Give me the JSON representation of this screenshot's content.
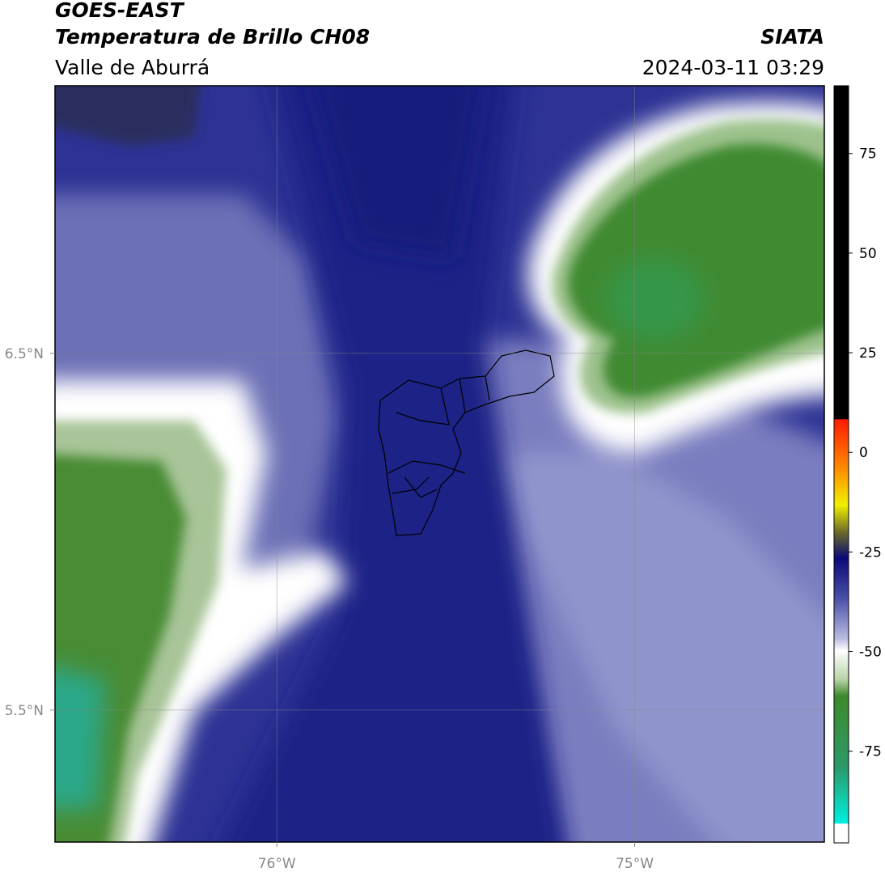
{
  "header": {
    "title": "GOES-EAST",
    "subtitle": "Temperatura de Brillo CH08",
    "region": "Valle de Aburrá",
    "source": "SIATA",
    "timestamp": "2024-03-11 03:29"
  },
  "map": {
    "xlim": [
      -76.62,
      -74.47
    ],
    "ylim": [
      5.13,
      7.25
    ],
    "xticks": [
      {
        "value": -76,
        "label": "76°W"
      },
      {
        "value": -75,
        "label": "75°W"
      }
    ],
    "yticks": [
      {
        "value": 6.5,
        "label": "6.5°N"
      },
      {
        "value": 5.5,
        "label": "5.5°N"
      }
    ],
    "grid": true
  },
  "colorbar": {
    "lim": [
      -98,
      92
    ],
    "ticks": [
      75,
      50,
      25,
      0,
      -25,
      -50,
      -75
    ]
  }
}
